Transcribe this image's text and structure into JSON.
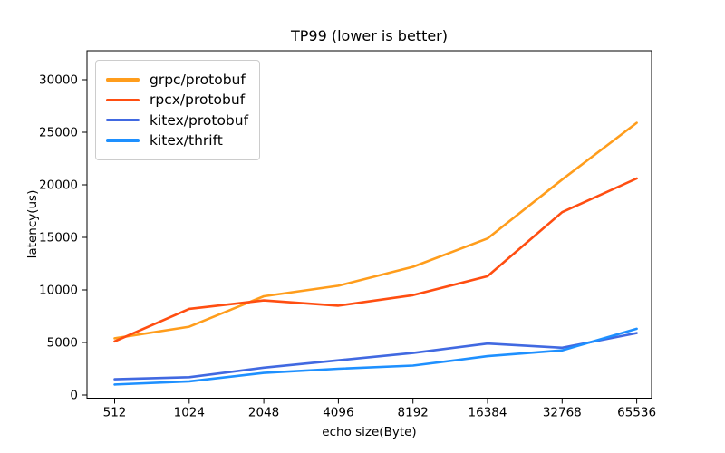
{
  "figure": {
    "title": "TP99 (lower is better)",
    "xlabel": "echo size(Byte)",
    "ylabel": "latency(us)"
  },
  "chart_data": {
    "type": "line",
    "title": "TP99 (lower is better)",
    "xlabel": "echo size(Byte)",
    "ylabel": "latency(us)",
    "categories": [
      "512",
      "1024",
      "2048",
      "4096",
      "8192",
      "16384",
      "32768",
      "65536"
    ],
    "x_scale": "log2-categorical-even-spacing",
    "y_ticks": [
      0,
      5000,
      10000,
      15000,
      20000,
      25000,
      30000
    ],
    "ylim": [
      -500,
      32800
    ],
    "grid": false,
    "legend_position": "upper-left",
    "series": [
      {
        "name": "grpc/protobuf",
        "color": "#FF9D1C",
        "values": [
          5400,
          6500,
          9400,
          10400,
          12200,
          14900,
          20500,
          25900
        ]
      },
      {
        "name": "rpcx/protobuf",
        "color": "#FF4E11",
        "values": [
          5100,
          8200,
          9000,
          8500,
          9500,
          11300,
          17400,
          20600
        ]
      },
      {
        "name": "kitex/protobuf",
        "color": "#4169E1",
        "values": [
          1500,
          1700,
          2600,
          3300,
          4000,
          4900,
          4500,
          5900
        ]
      },
      {
        "name": "kitex/thrift",
        "color": "#1E90FF",
        "values": [
          1000,
          1300,
          2100,
          2500,
          2800,
          3700,
          4250,
          6300
        ]
      }
    ]
  }
}
